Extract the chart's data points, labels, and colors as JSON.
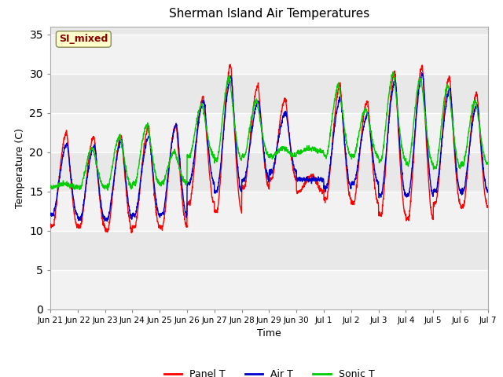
{
  "title": "Sherman Island Air Temperatures",
  "xlabel": "Time",
  "ylabel": "Temperature (C)",
  "ylim": [
    0,
    36
  ],
  "yticks": [
    0,
    5,
    10,
    15,
    20,
    25,
    30,
    35
  ],
  "annotation_text": "SI_mixed",
  "annotation_color": "#8B0000",
  "annotation_bg": "#FFFFCC",
  "plot_bg": "#E8E8E8",
  "band_bg": "#DCDCDC",
  "grid_color": "#FFFFFF",
  "line_colors": {
    "panel": "#FF0000",
    "air": "#0000CC",
    "sonic": "#00CC00"
  },
  "x_tick_labels": [
    "Jun 21",
    "Jun 22",
    "Jun 23",
    "Jun 24",
    "Jun 25",
    "Jun 26",
    "Jun 27",
    "Jun 28",
    "Jun 29",
    "Jun 30",
    "Jul 1",
    "Jul 2",
    "Jul 3",
    "Jul 4",
    "Jul 5",
    "Jul 6",
    "Jul 7"
  ],
  "legend_labels": [
    "Panel T",
    "Air T",
    "Sonic T"
  ],
  "n_days": 16,
  "pts_per_day": 144,
  "panel_peaks": [
    22.5,
    22.0,
    22.0,
    23.2,
    23.5,
    27.0,
    31.0,
    28.5,
    26.7,
    17.0,
    28.5,
    26.5,
    30.2,
    31.0,
    29.5,
    27.5
  ],
  "panel_mins": [
    10.5,
    10.5,
    10.0,
    10.5,
    10.5,
    13.5,
    12.5,
    15.5,
    16.5,
    15.0,
    14.0,
    13.5,
    12.0,
    11.5,
    13.5,
    13.0
  ],
  "air_peaks": [
    21.0,
    20.8,
    21.5,
    22.0,
    23.5,
    26.5,
    29.5,
    26.5,
    25.0,
    16.5,
    26.8,
    24.8,
    29.0,
    30.0,
    28.0,
    26.0
  ],
  "air_mins": [
    12.0,
    11.5,
    11.5,
    12.0,
    12.0,
    16.0,
    15.0,
    16.5,
    17.5,
    16.5,
    15.5,
    16.0,
    14.5,
    14.5,
    15.0,
    15.0
  ],
  "sonic_peaks": [
    16.0,
    20.5,
    22.0,
    23.5,
    20.0,
    26.0,
    29.5,
    26.5,
    20.5,
    20.5,
    28.5,
    25.5,
    30.0,
    29.5,
    28.5,
    26.5
  ],
  "sonic_mins": [
    15.5,
    15.5,
    15.5,
    16.0,
    16.0,
    19.5,
    19.0,
    19.5,
    19.5,
    20.0,
    19.5,
    19.5,
    19.0,
    18.5,
    18.0,
    18.5
  ]
}
